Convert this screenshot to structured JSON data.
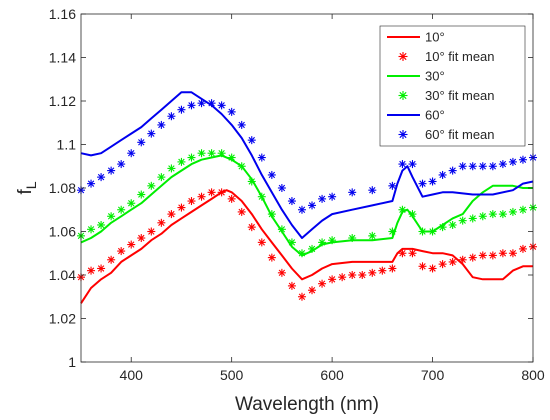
{
  "chart_data": {
    "type": "line",
    "xlabel": "Wavelength (nm)",
    "ylabel_main": "f",
    "ylabel_sub": "L",
    "xlim": [
      350,
      800
    ],
    "ylim": [
      1.0,
      1.16
    ],
    "xticks": [
      400,
      500,
      600,
      700,
      800
    ],
    "xtick_labels": [
      "400",
      "500",
      "600",
      "700",
      "800"
    ],
    "yticks": [
      1.0,
      1.02,
      1.04,
      1.06,
      1.08,
      1.1,
      1.12,
      1.14,
      1.16
    ],
    "ytick_labels": [
      "1",
      "1.02",
      "1.04",
      "1.06",
      "1.08",
      "1.1",
      "1.12",
      "1.14",
      "1.16"
    ],
    "grid": false,
    "legend_position": "top-right",
    "colors": {
      "red": "#ff0000",
      "green": "#00ee00",
      "blue": "#0000ee",
      "axis": "#262626"
    },
    "series": [
      {
        "name": "10°",
        "style": "line",
        "color": "#ff0000",
        "points": [
          [
            350,
            1.027
          ],
          [
            360,
            1.034
          ],
          [
            370,
            1.038
          ],
          [
            380,
            1.041
          ],
          [
            390,
            1.046
          ],
          [
            400,
            1.049
          ],
          [
            410,
            1.052
          ],
          [
            420,
            1.056
          ],
          [
            430,
            1.059
          ],
          [
            440,
            1.063
          ],
          [
            450,
            1.066
          ],
          [
            460,
            1.069
          ],
          [
            470,
            1.072
          ],
          [
            480,
            1.075
          ],
          [
            490,
            1.078
          ],
          [
            495,
            1.079
          ],
          [
            500,
            1.078
          ],
          [
            510,
            1.074
          ],
          [
            520,
            1.068
          ],
          [
            530,
            1.061
          ],
          [
            540,
            1.055
          ],
          [
            550,
            1.049
          ],
          [
            560,
            1.043
          ],
          [
            570,
            1.038
          ],
          [
            580,
            1.04
          ],
          [
            590,
            1.043
          ],
          [
            600,
            1.045
          ],
          [
            620,
            1.046
          ],
          [
            640,
            1.046
          ],
          [
            660,
            1.046
          ],
          [
            665,
            1.05
          ],
          [
            670,
            1.052
          ],
          [
            680,
            1.052
          ],
          [
            690,
            1.051
          ],
          [
            700,
            1.05
          ],
          [
            710,
            1.05
          ],
          [
            720,
            1.049
          ],
          [
            730,
            1.045
          ],
          [
            740,
            1.039
          ],
          [
            750,
            1.038
          ],
          [
            760,
            1.038
          ],
          [
            770,
            1.038
          ],
          [
            780,
            1.042
          ],
          [
            790,
            1.044
          ],
          [
            800,
            1.044
          ]
        ]
      },
      {
        "name": "10° fit mean",
        "style": "markers",
        "color": "#ff0000",
        "points": [
          [
            350,
            1.039
          ],
          [
            360,
            1.042
          ],
          [
            370,
            1.043
          ],
          [
            380,
            1.047
          ],
          [
            390,
            1.051
          ],
          [
            400,
            1.054
          ],
          [
            410,
            1.057
          ],
          [
            420,
            1.06
          ],
          [
            430,
            1.064
          ],
          [
            440,
            1.068
          ],
          [
            450,
            1.071
          ],
          [
            460,
            1.074
          ],
          [
            470,
            1.076
          ],
          [
            480,
            1.078
          ],
          [
            490,
            1.078
          ],
          [
            500,
            1.075
          ],
          [
            510,
            1.069
          ],
          [
            520,
            1.062
          ],
          [
            530,
            1.055
          ],
          [
            540,
            1.048
          ],
          [
            550,
            1.041
          ],
          [
            560,
            1.035
          ],
          [
            570,
            1.03
          ],
          [
            580,
            1.033
          ],
          [
            590,
            1.036
          ],
          [
            600,
            1.038
          ],
          [
            610,
            1.039
          ],
          [
            620,
            1.04
          ],
          [
            630,
            1.04
          ],
          [
            640,
            1.041
          ],
          [
            650,
            1.042
          ],
          [
            660,
            1.043
          ],
          [
            670,
            1.05
          ],
          [
            680,
            1.05
          ],
          [
            690,
            1.044
          ],
          [
            700,
            1.043
          ],
          [
            710,
            1.045
          ],
          [
            720,
            1.046
          ],
          [
            730,
            1.047
          ],
          [
            740,
            1.048
          ],
          [
            750,
            1.049
          ],
          [
            760,
            1.049
          ],
          [
            770,
            1.05
          ],
          [
            780,
            1.05
          ],
          [
            790,
            1.052
          ],
          [
            800,
            1.053
          ]
        ]
      },
      {
        "name": "30°",
        "style": "line",
        "color": "#00ee00",
        "points": [
          [
            350,
            1.055
          ],
          [
            360,
            1.057
          ],
          [
            370,
            1.06
          ],
          [
            380,
            1.064
          ],
          [
            390,
            1.067
          ],
          [
            400,
            1.07
          ],
          [
            410,
            1.073
          ],
          [
            420,
            1.077
          ],
          [
            430,
            1.081
          ],
          [
            440,
            1.085
          ],
          [
            450,
            1.088
          ],
          [
            460,
            1.091
          ],
          [
            470,
            1.093
          ],
          [
            480,
            1.094
          ],
          [
            490,
            1.095
          ],
          [
            500,
            1.093
          ],
          [
            510,
            1.09
          ],
          [
            520,
            1.084
          ],
          [
            530,
            1.076
          ],
          [
            540,
            1.067
          ],
          [
            550,
            1.06
          ],
          [
            560,
            1.053
          ],
          [
            570,
            1.049
          ],
          [
            580,
            1.051
          ],
          [
            590,
            1.054
          ],
          [
            600,
            1.055
          ],
          [
            620,
            1.056
          ],
          [
            640,
            1.056
          ],
          [
            660,
            1.057
          ],
          [
            665,
            1.064
          ],
          [
            670,
            1.069
          ],
          [
            675,
            1.07
          ],
          [
            680,
            1.067
          ],
          [
            690,
            1.06
          ],
          [
            700,
            1.06
          ],
          [
            710,
            1.063
          ],
          [
            720,
            1.066
          ],
          [
            730,
            1.068
          ],
          [
            740,
            1.074
          ],
          [
            750,
            1.078
          ],
          [
            760,
            1.081
          ],
          [
            770,
            1.081
          ],
          [
            780,
            1.081
          ],
          [
            790,
            1.08
          ],
          [
            800,
            1.08
          ]
        ]
      },
      {
        "name": "30° fit mean",
        "style": "markers",
        "color": "#00ee00",
        "points": [
          [
            350,
            1.058
          ],
          [
            360,
            1.061
          ],
          [
            370,
            1.063
          ],
          [
            380,
            1.067
          ],
          [
            390,
            1.07
          ],
          [
            400,
            1.073
          ],
          [
            410,
            1.077
          ],
          [
            420,
            1.081
          ],
          [
            430,
            1.085
          ],
          [
            440,
            1.089
          ],
          [
            450,
            1.092
          ],
          [
            460,
            1.094
          ],
          [
            470,
            1.096
          ],
          [
            480,
            1.096
          ],
          [
            490,
            1.096
          ],
          [
            500,
            1.094
          ],
          [
            510,
            1.09
          ],
          [
            520,
            1.083
          ],
          [
            530,
            1.076
          ],
          [
            540,
            1.068
          ],
          [
            550,
            1.061
          ],
          [
            560,
            1.055
          ],
          [
            570,
            1.05
          ],
          [
            580,
            1.052
          ],
          [
            590,
            1.055
          ],
          [
            600,
            1.056
          ],
          [
            620,
            1.057
          ],
          [
            640,
            1.058
          ],
          [
            660,
            1.06
          ],
          [
            670,
            1.07
          ],
          [
            680,
            1.068
          ],
          [
            690,
            1.06
          ],
          [
            700,
            1.06
          ],
          [
            710,
            1.062
          ],
          [
            720,
            1.063
          ],
          [
            730,
            1.065
          ],
          [
            740,
            1.066
          ],
          [
            750,
            1.067
          ],
          [
            760,
            1.068
          ],
          [
            770,
            1.068
          ],
          [
            780,
            1.069
          ],
          [
            790,
            1.07
          ],
          [
            800,
            1.071
          ]
        ]
      },
      {
        "name": "60°",
        "style": "line",
        "color": "#0000ee",
        "points": [
          [
            350,
            1.096
          ],
          [
            360,
            1.095
          ],
          [
            370,
            1.096
          ],
          [
            380,
            1.099
          ],
          [
            390,
            1.102
          ],
          [
            400,
            1.105
          ],
          [
            410,
            1.108
          ],
          [
            420,
            1.112
          ],
          [
            430,
            1.116
          ],
          [
            440,
            1.12
          ],
          [
            450,
            1.124
          ],
          [
            460,
            1.124
          ],
          [
            470,
            1.121
          ],
          [
            480,
            1.118
          ],
          [
            490,
            1.114
          ],
          [
            500,
            1.109
          ],
          [
            510,
            1.103
          ],
          [
            520,
            1.095
          ],
          [
            530,
            1.086
          ],
          [
            540,
            1.078
          ],
          [
            550,
            1.07
          ],
          [
            560,
            1.063
          ],
          [
            570,
            1.057
          ],
          [
            580,
            1.061
          ],
          [
            590,
            1.065
          ],
          [
            600,
            1.068
          ],
          [
            620,
            1.07
          ],
          [
            640,
            1.072
          ],
          [
            660,
            1.074
          ],
          [
            665,
            1.082
          ],
          [
            670,
            1.088
          ],
          [
            675,
            1.09
          ],
          [
            680,
            1.085
          ],
          [
            690,
            1.076
          ],
          [
            700,
            1.077
          ],
          [
            710,
            1.078
          ],
          [
            720,
            1.078
          ],
          [
            740,
            1.077
          ],
          [
            760,
            1.077
          ],
          [
            780,
            1.079
          ],
          [
            790,
            1.082
          ],
          [
            800,
            1.083
          ]
        ]
      },
      {
        "name": "60° fit mean",
        "style": "markers",
        "color": "#0000ee",
        "points": [
          [
            350,
            1.079
          ],
          [
            360,
            1.082
          ],
          [
            370,
            1.085
          ],
          [
            380,
            1.088
          ],
          [
            390,
            1.091
          ],
          [
            400,
            1.096
          ],
          [
            410,
            1.101
          ],
          [
            420,
            1.105
          ],
          [
            430,
            1.109
          ],
          [
            440,
            1.113
          ],
          [
            450,
            1.116
          ],
          [
            460,
            1.118
          ],
          [
            470,
            1.119
          ],
          [
            480,
            1.119
          ],
          [
            490,
            1.118
          ],
          [
            500,
            1.115
          ],
          [
            510,
            1.109
          ],
          [
            520,
            1.102
          ],
          [
            530,
            1.094
          ],
          [
            540,
            1.086
          ],
          [
            550,
            1.08
          ],
          [
            560,
            1.074
          ],
          [
            570,
            1.07
          ],
          [
            580,
            1.072
          ],
          [
            590,
            1.075
          ],
          [
            600,
            1.076
          ],
          [
            620,
            1.078
          ],
          [
            640,
            1.079
          ],
          [
            660,
            1.081
          ],
          [
            670,
            1.091
          ],
          [
            680,
            1.091
          ],
          [
            690,
            1.082
          ],
          [
            700,
            1.083
          ],
          [
            710,
            1.086
          ],
          [
            720,
            1.088
          ],
          [
            730,
            1.09
          ],
          [
            740,
            1.09
          ],
          [
            750,
            1.09
          ],
          [
            760,
            1.09
          ],
          [
            770,
            1.091
          ],
          [
            780,
            1.092
          ],
          [
            790,
            1.093
          ],
          [
            800,
            1.094
          ]
        ]
      }
    ]
  }
}
